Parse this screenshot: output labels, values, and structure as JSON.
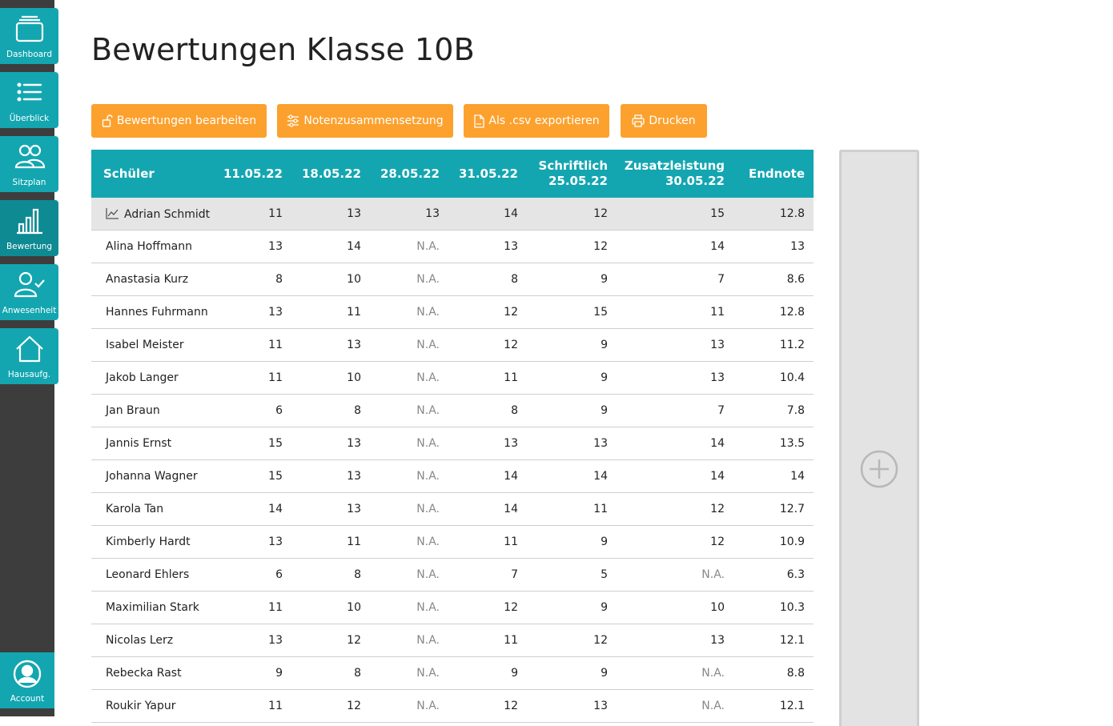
{
  "app": {
    "title": "Bewertungen Klasse 10B"
  },
  "sidebar": {
    "items": [
      {
        "label": "Dashboard",
        "icon": "dashboard-icon"
      },
      {
        "label": "Überblick",
        "icon": "list-icon"
      },
      {
        "label": "Sitzplan",
        "icon": "users-icon"
      },
      {
        "label": "Bewertung",
        "icon": "bar-chart-icon",
        "active": true
      },
      {
        "label": "Anwesenheit",
        "icon": "user-check-icon"
      },
      {
        "label": "Hausaufg.",
        "icon": "home-icon"
      }
    ],
    "account": {
      "label": "Account",
      "icon": "account-icon"
    }
  },
  "toolbar": {
    "edit_label": "Bewertungen bearbeiten",
    "composition_label": "Notenzusammensetzung",
    "export_label": "Als .csv exportieren",
    "print_label": "Drucken"
  },
  "table": {
    "headers": [
      "Schüler",
      "11.05.22",
      "18.05.22",
      "28.05.22",
      "31.05.22",
      "Schriftlich",
      "Zusatzleistung",
      "Endnote"
    ],
    "header_sub": {
      "written": "25.05.22",
      "extra": "30.05.22"
    },
    "rows": [
      {
        "name": "Adrian Schmidt",
        "values": [
          "11",
          "13",
          "13",
          "14",
          "12",
          "15",
          "12.8"
        ]
      },
      {
        "name": "Alina Hoffmann",
        "values": [
          "13",
          "14",
          "N.A.",
          "13",
          "12",
          "14",
          "13"
        ]
      },
      {
        "name": "Anastasia Kurz",
        "values": [
          "8",
          "10",
          "N.A.",
          "8",
          "9",
          "7",
          "8.6"
        ]
      },
      {
        "name": "Hannes Fuhrmann",
        "values": [
          "13",
          "11",
          "N.A.",
          "12",
          "15",
          "11",
          "12.8"
        ]
      },
      {
        "name": "Isabel Meister",
        "values": [
          "11",
          "13",
          "N.A.",
          "12",
          "9",
          "13",
          "11.2"
        ]
      },
      {
        "name": "Jakob Langer",
        "values": [
          "11",
          "10",
          "N.A.",
          "11",
          "9",
          "13",
          "10.4"
        ]
      },
      {
        "name": "Jan Braun",
        "values": [
          "6",
          "8",
          "N.A.",
          "8",
          "9",
          "7",
          "7.8"
        ]
      },
      {
        "name": "Jannis Ernst",
        "values": [
          "15",
          "13",
          "N.A.",
          "13",
          "13",
          "14",
          "13.5"
        ]
      },
      {
        "name": "Johanna Wagner",
        "values": [
          "15",
          "13",
          "N.A.",
          "14",
          "14",
          "14",
          "14"
        ]
      },
      {
        "name": "Karola Tan",
        "values": [
          "14",
          "13",
          "N.A.",
          "14",
          "11",
          "12",
          "12.7"
        ]
      },
      {
        "name": "Kimberly Hardt",
        "values": [
          "13",
          "11",
          "N.A.",
          "11",
          "9",
          "12",
          "10.9"
        ]
      },
      {
        "name": "Leonard Ehlers",
        "values": [
          "6",
          "8",
          "N.A.",
          "7",
          "5",
          "N.A.",
          "6.3"
        ]
      },
      {
        "name": "Maximilian Stark",
        "values": [
          "11",
          "10",
          "N.A.",
          "12",
          "9",
          "10",
          "10.3"
        ]
      },
      {
        "name": "Nicolas Lerz",
        "values": [
          "13",
          "12",
          "N.A.",
          "11",
          "12",
          "13",
          "12.1"
        ]
      },
      {
        "name": "Rebecka Rast",
        "values": [
          "9",
          "8",
          "N.A.",
          "9",
          "9",
          "N.A.",
          "8.8"
        ]
      },
      {
        "name": "Roukir Yapur",
        "values": [
          "11",
          "12",
          "N.A.",
          "12",
          "13",
          "N.A.",
          "12.1"
        ]
      }
    ]
  },
  "colors": {
    "accent": "#13a6b0",
    "accent_active": "#0e8a93",
    "button": "#fca12e",
    "sidebar": "#3d3d3d",
    "selected_row": "#e5e5e5"
  }
}
